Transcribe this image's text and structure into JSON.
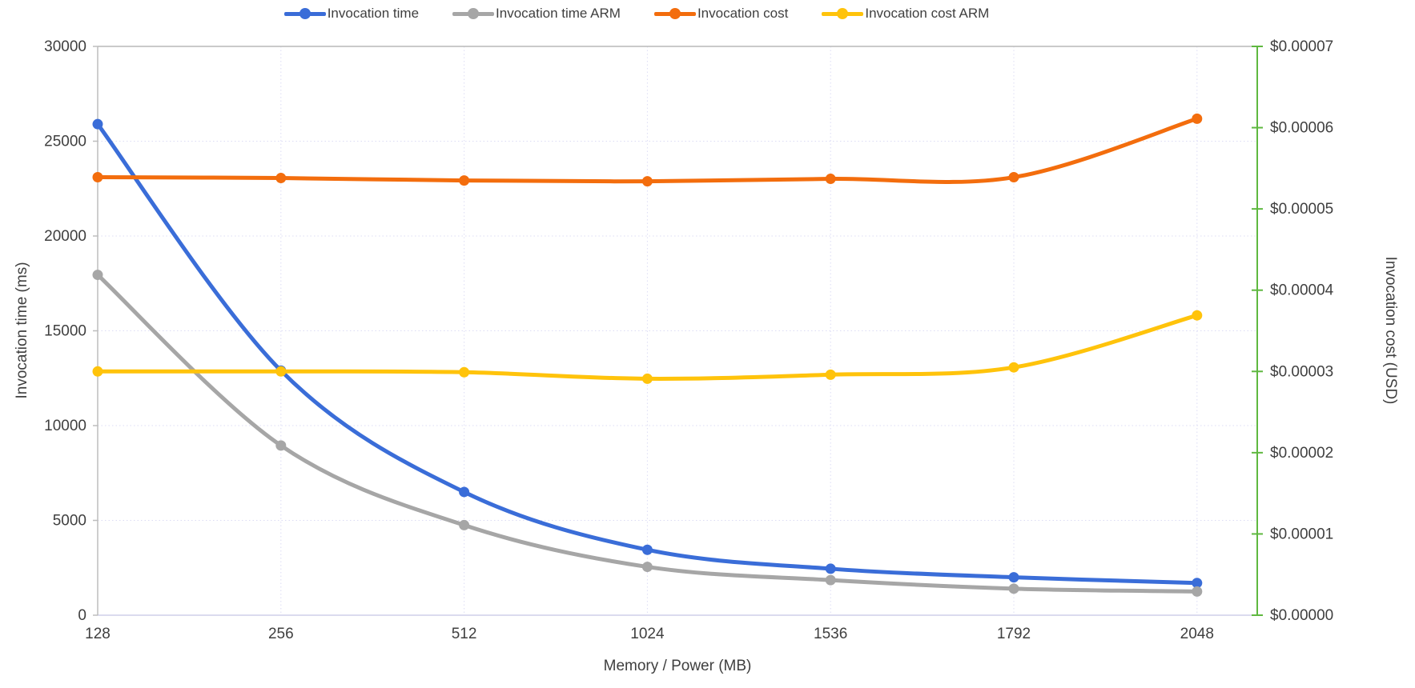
{
  "chart_data": {
    "type": "line",
    "smooth": true,
    "grid": true,
    "legend_position": "top",
    "categories": [
      "128",
      "256",
      "512",
      "1024",
      "1536",
      "1792",
      "2048"
    ],
    "series": [
      {
        "name": "Invocation time",
        "axis": "left",
        "color": "#3A6DD8",
        "values": [
          25900,
          12900,
          6500,
          3450,
          2450,
          2000,
          1700
        ]
      },
      {
        "name": "Invocation time ARM",
        "axis": "left",
        "color": "#A6A6A6",
        "values": [
          17950,
          8950,
          4750,
          2550,
          1850,
          1400,
          1250
        ]
      },
      {
        "name": "Invocation cost",
        "axis": "right",
        "color": "#F36D0D",
        "values": [
          5.39e-05,
          5.38e-05,
          5.35e-05,
          5.34e-05,
          5.37e-05,
          5.39e-05,
          6.11e-05
        ]
      },
      {
        "name": "Invocation cost ARM",
        "axis": "right",
        "color": "#FFC30B",
        "values": [
          3e-05,
          3e-05,
          2.99e-05,
          2.91e-05,
          2.96e-05,
          3.05e-05,
          3.69e-05
        ]
      }
    ],
    "xlabel": "Memory / Power (MB)",
    "ylabel_left": "Invocation time (ms)",
    "ylabel_right": "Invocation cost (USD)",
    "left_axis": {
      "min": 0,
      "max": 30000,
      "step": 5000,
      "tick_labels": [
        "0",
        "5000",
        "10000",
        "15000",
        "20000",
        "25000",
        "30000"
      ],
      "line_color": "#BDBDBD"
    },
    "right_axis": {
      "min": 0,
      "max": 7e-05,
      "step": 1e-05,
      "tick_labels": [
        "$0.00000",
        "$0.00001",
        "$0.00002",
        "$0.00003",
        "$0.00004",
        "$0.00005",
        "$0.00006",
        "$0.00007"
      ],
      "line_color": "#5FB840"
    },
    "gridline_color": "#DCDCF4",
    "top_border_color": "#B9B9B9",
    "text_color": "#3f3f3f"
  }
}
